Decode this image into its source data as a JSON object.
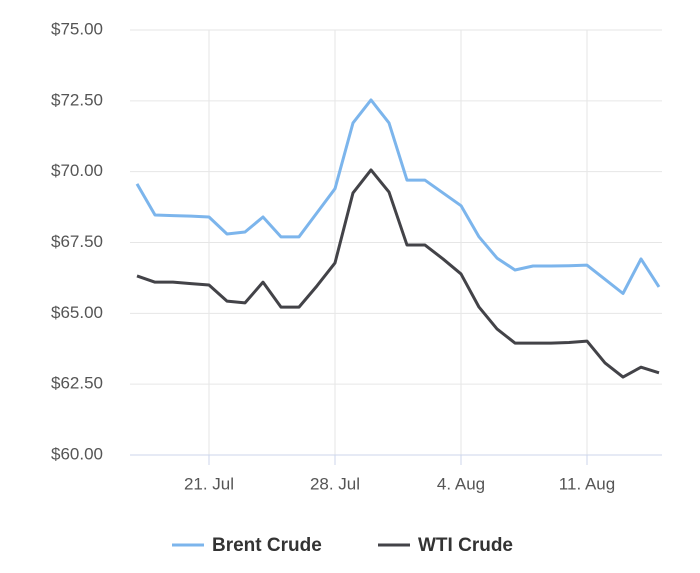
{
  "chart_data": {
    "type": "line",
    "categories": [
      null,
      null,
      null,
      null,
      "21. Jul",
      null,
      null,
      null,
      null,
      null,
      null,
      "28. Jul",
      null,
      null,
      null,
      null,
      null,
      null,
      "4. Aug",
      null,
      null,
      null,
      null,
      null,
      null,
      "11. Aug",
      null,
      null,
      null,
      null
    ],
    "series": [
      {
        "name": "Brent Crude",
        "color": "#7cb5ec",
        "values": [
          69.57,
          68.47,
          68.45,
          68.43,
          68.4,
          67.8,
          67.87,
          68.4,
          67.7,
          67.7,
          68.55,
          69.4,
          71.72,
          72.53,
          71.72,
          69.7,
          69.7,
          69.25,
          68.8,
          67.7,
          66.95,
          66.53,
          66.67,
          66.67,
          66.68,
          66.7,
          66.2,
          65.7,
          66.92,
          65.93
        ]
      },
      {
        "name": "WTI Crude",
        "color": "#434348",
        "values": [
          66.32,
          66.1,
          66.1,
          66.05,
          66.0,
          65.43,
          65.37,
          66.1,
          65.22,
          65.22,
          65.97,
          66.78,
          69.25,
          70.06,
          69.28,
          67.41,
          67.41,
          66.92,
          66.39,
          65.22,
          64.45,
          63.95,
          63.95,
          63.95,
          63.97,
          64.02,
          63.25,
          62.75,
          63.1,
          62.9
        ]
      }
    ],
    "ylim": [
      60,
      75
    ],
    "yticks": [
      {
        "value": 60,
        "label": "$60.00"
      },
      {
        "value": 62.5,
        "label": "$62.50"
      },
      {
        "value": 65,
        "label": "$65.00"
      },
      {
        "value": 67.5,
        "label": "$67.50"
      },
      {
        "value": 70,
        "label": "$70.00"
      },
      {
        "value": 72.5,
        "label": "$72.50"
      },
      {
        "value": 75,
        "label": "$75.00"
      }
    ],
    "grid": true
  }
}
